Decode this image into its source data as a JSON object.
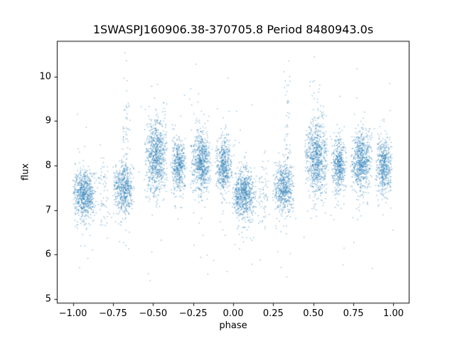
{
  "figure": {
    "title": "1SWASPJ160906.38-370705.8 Period 8480943.0s",
    "xlabel": "phase",
    "ylabel": "flux"
  },
  "chart_data": {
    "type": "scatter",
    "title": "1SWASPJ160906.38-370705.8 Period 8480943.0s",
    "xlabel": "phase",
    "ylabel": "flux",
    "xlim": [
      -1.1,
      1.1
    ],
    "ylim": [
      4.9,
      10.8
    ],
    "x_ticks": [
      -1.0,
      -0.75,
      -0.5,
      -0.25,
      0.0,
      0.25,
      0.5,
      0.75,
      1.0
    ],
    "x_tick_labels": [
      "−1.00",
      "−0.75",
      "−0.50",
      "−0.25",
      "0.00",
      "0.25",
      "0.50",
      "0.75",
      "1.00"
    ],
    "y_ticks": [
      5,
      6,
      7,
      8,
      9,
      10
    ],
    "y_tick_labels": [
      "5",
      "6",
      "7",
      "8",
      "9",
      "10"
    ],
    "grid": false,
    "legend": null,
    "marker_color": "#1f77b4",
    "marker_alpha": 0.5,
    "marker_size_px": 1.4,
    "flux_range": [
      5.3,
      10.55
    ],
    "phase_range": [
      -1.0,
      1.0
    ],
    "seed": 20240901,
    "description": "Phase-folded SuperWASP light curve; each point cluster appears twice (at phase p and p-1). Clusters summarized as phase_center/halfwidth and flux mean/std with sparse vertical tails.",
    "duplicate_offsets": [
      0,
      -1
    ],
    "clusters": [
      {
        "phase_center": 0.07,
        "phase_halfwidth": 0.08,
        "flux_mean": 7.35,
        "flux_std": 0.27,
        "n": 700,
        "tail_frac": 0.045,
        "tail_mult": 3.2
      },
      {
        "phase_center": 0.19,
        "phase_halfwidth": 0.045,
        "flux_mean": 7.4,
        "flux_std": 0.45,
        "n": 60,
        "tail_frac": 0.05,
        "tail_mult": 2.5
      },
      {
        "phase_center": 0.315,
        "phase_halfwidth": 0.07,
        "flux_mean": 7.5,
        "flux_std": 0.28,
        "n": 520,
        "tail_frac": 0.045,
        "tail_mult": 3.2
      },
      {
        "phase_center": 0.335,
        "phase_halfwidth": 0.025,
        "flux_mean": 8.3,
        "flux_std": 1.0,
        "n": 70,
        "tail_frac": 0.08,
        "tail_mult": 1.6
      },
      {
        "phase_center": 0.52,
        "phase_halfwidth": 0.075,
        "flux_mean": 8.2,
        "flux_std": 0.42,
        "n": 780,
        "tail_frac": 0.05,
        "tail_mult": 2.6
      },
      {
        "phase_center": 0.66,
        "phase_halfwidth": 0.05,
        "flux_mean": 8.0,
        "flux_std": 0.3,
        "n": 450,
        "tail_frac": 0.04,
        "tail_mult": 2.8
      },
      {
        "phase_center": 0.8,
        "phase_halfwidth": 0.07,
        "flux_mean": 8.1,
        "flux_std": 0.33,
        "n": 680,
        "tail_frac": 0.045,
        "tail_mult": 3.0
      },
      {
        "phase_center": 0.94,
        "phase_halfwidth": 0.055,
        "flux_mean": 8.0,
        "flux_std": 0.3,
        "n": 500,
        "tail_frac": 0.035,
        "tail_mult": 2.6
      }
    ],
    "background": {
      "n": 90,
      "flux_mean": 7.7,
      "flux_std": 1.25
    }
  }
}
